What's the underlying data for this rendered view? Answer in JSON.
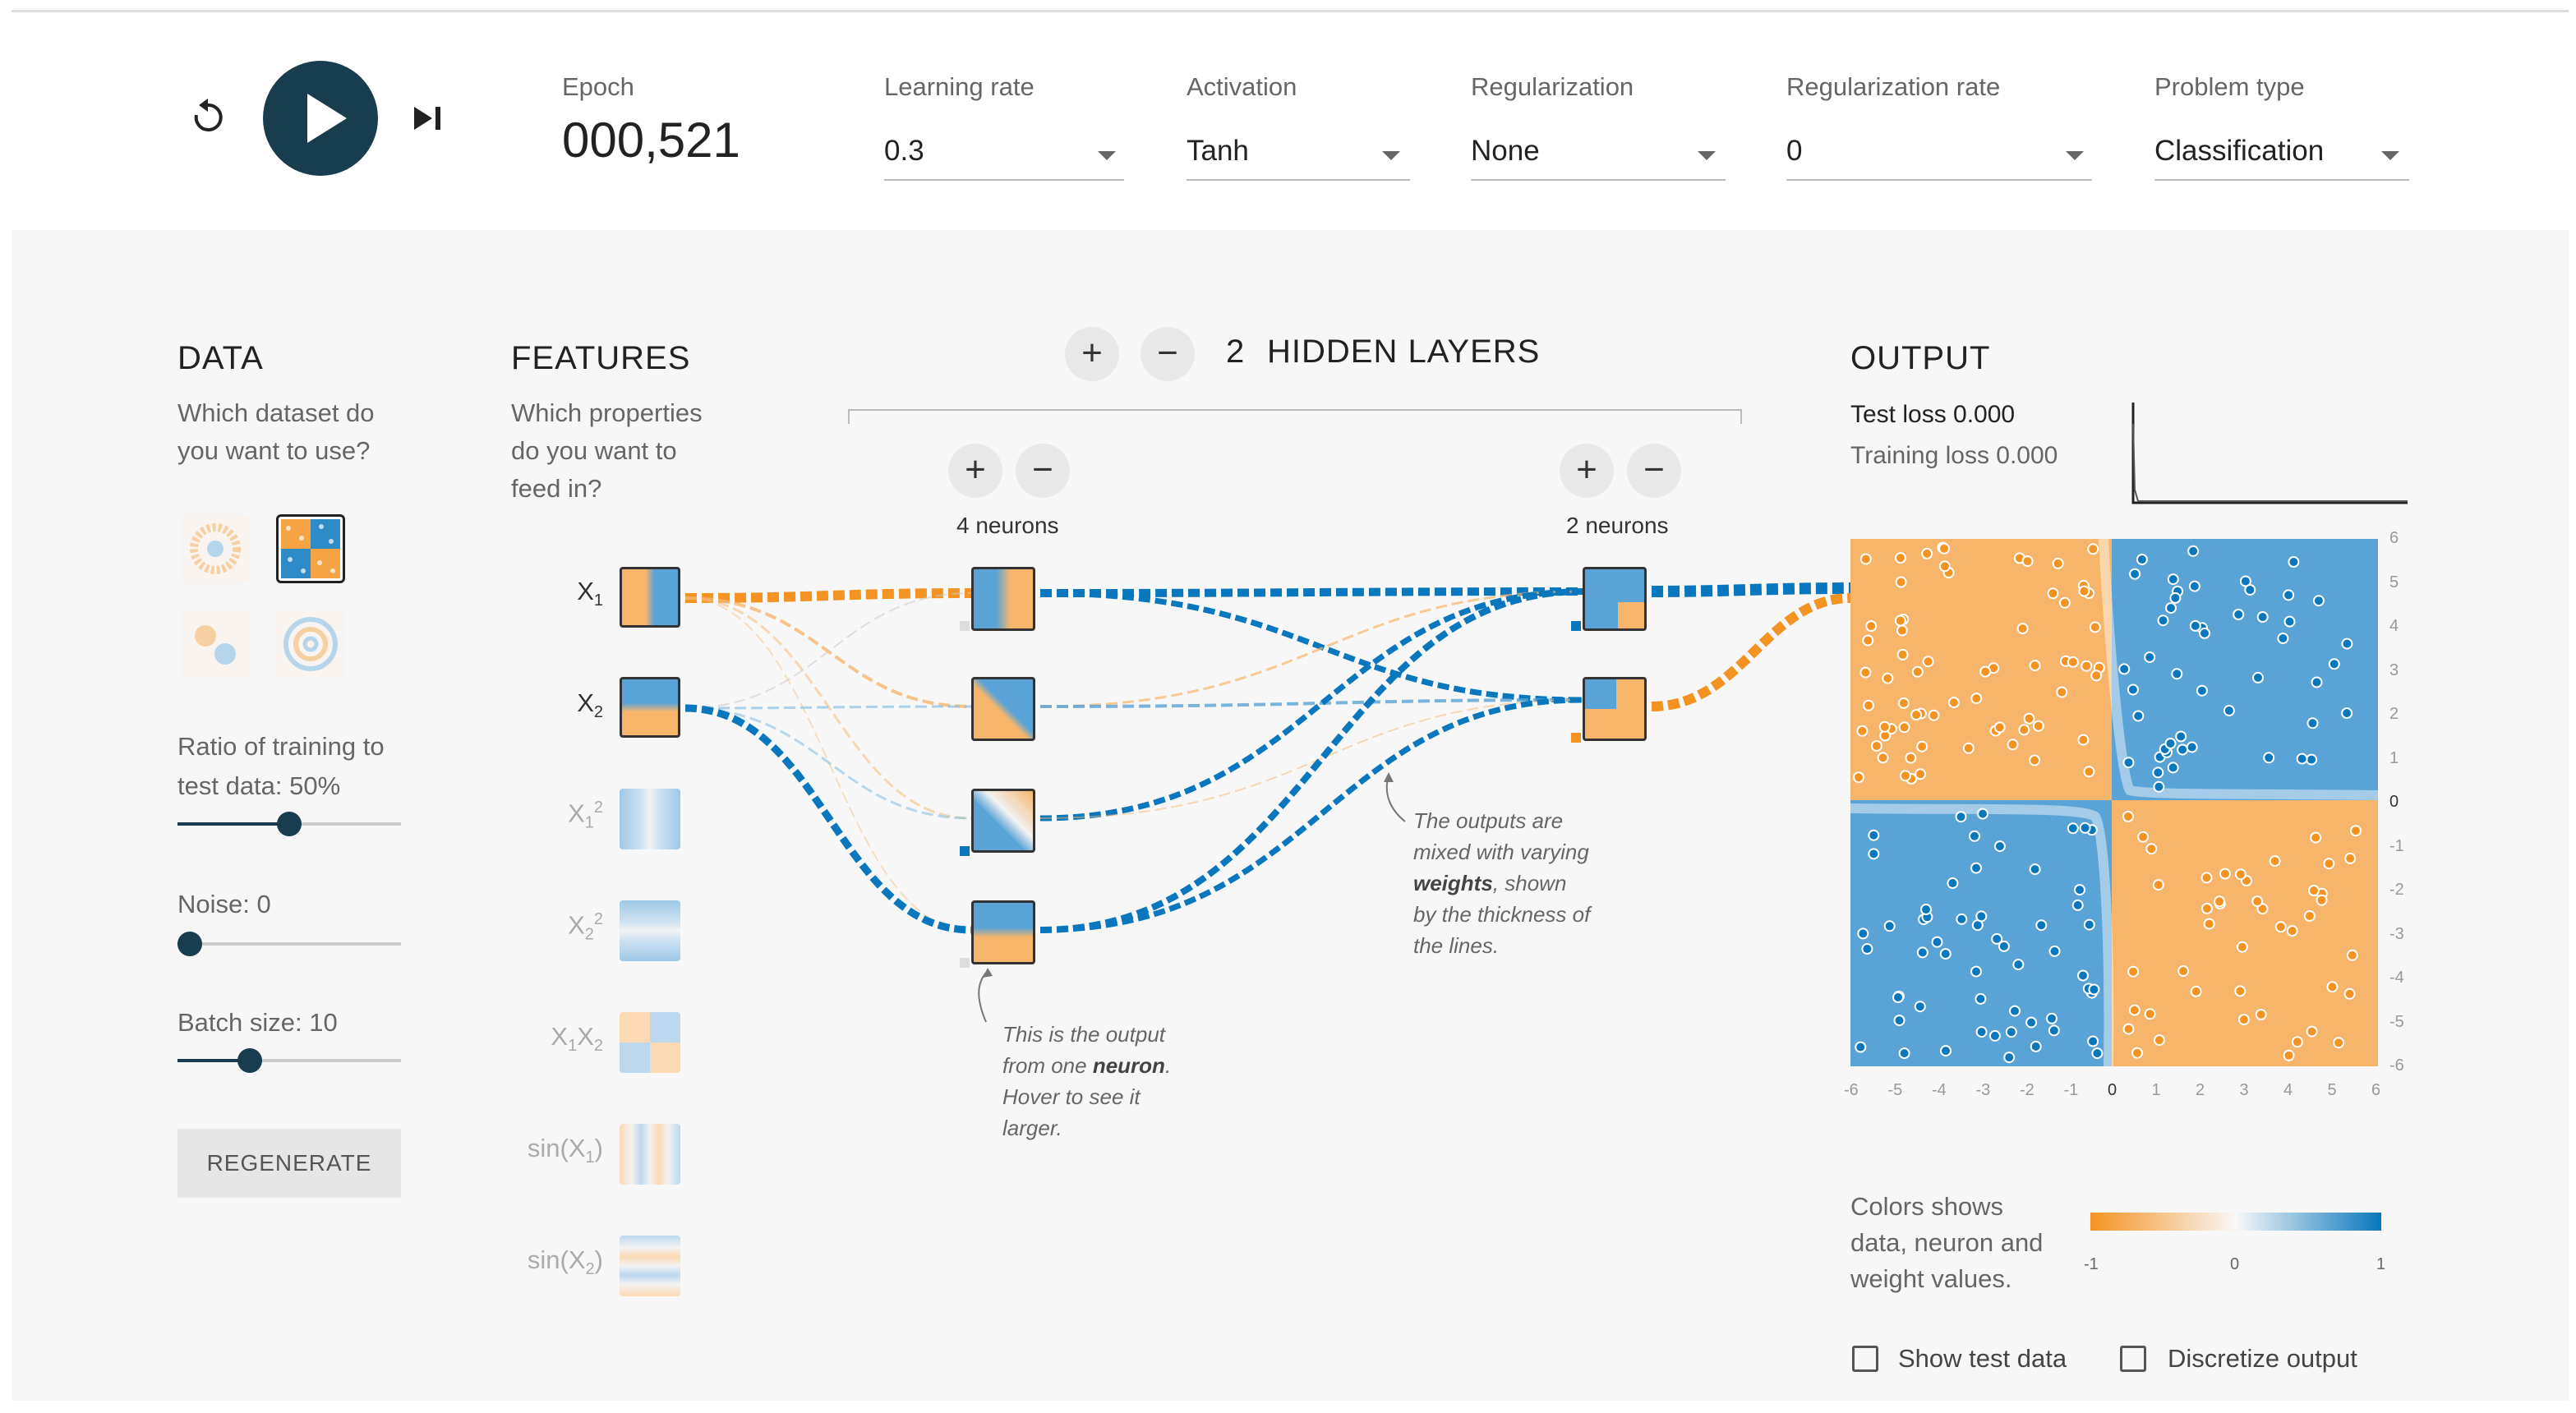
{
  "controls": {
    "epoch_label": "Epoch",
    "epoch_value": "000,521",
    "learning_rate_label": "Learning rate",
    "learning_rate_value": "0.3",
    "activation_label": "Activation",
    "activation_value": "Tanh",
    "regularization_label": "Regularization",
    "regularization_value": "None",
    "regularization_rate_label": "Regularization rate",
    "regularization_rate_value": "0",
    "problem_type_label": "Problem type",
    "problem_type_value": "Classification"
  },
  "data_panel": {
    "title": "DATA",
    "description_line1": "Which dataset do",
    "description_line2": "you want to use?",
    "ratio_label_line1": "Ratio of training to",
    "ratio_label_line2": "test data:  50%",
    "ratio_value": 0.5,
    "noise_label": "Noise:  0",
    "noise_value": 0.0,
    "batch_label": "Batch size:  10",
    "batch_value": 0.3,
    "regenerate_label": "REGENERATE"
  },
  "features_panel": {
    "title": "FEATURES",
    "description_line1": "Which properties",
    "description_line2": "do you want to",
    "description_line3": "feed in?",
    "features": [
      {
        "base": "X",
        "sub": "1",
        "sup": ""
      },
      {
        "base": "X",
        "sub": "2",
        "sup": ""
      },
      {
        "base": "X",
        "sub": "1",
        "sup": "2"
      },
      {
        "base": "X",
        "sub": "2",
        "sup": "2"
      },
      {
        "base": "X",
        "sub": "1",
        "base2": "X",
        "sub2": "2"
      },
      {
        "base": "sin(X",
        "sub": "1",
        "close": ")"
      },
      {
        "base": "sin(X",
        "sub": "2",
        "close": ")"
      }
    ]
  },
  "network": {
    "add_layer_symbol": "+",
    "remove_layer_symbol": "−",
    "hidden_layers_count": "2",
    "hidden_layers_label": "HIDDEN LAYERS",
    "layer1_neurons": "4 neurons",
    "layer2_neurons": "2 neurons",
    "note_neuron_line1": "This is the output",
    "note_neuron_line2_pre": "from one ",
    "note_neuron_line2_bold": "neuron",
    "note_neuron_line2_post": ".",
    "note_neuron_line3": "Hover to see it",
    "note_neuron_line4": "larger.",
    "note_weights_line1": "The outputs are",
    "note_weights_line2": "mixed with varying",
    "note_weights_line3_bold": "weights",
    "note_weights_line3_post": ", shown",
    "note_weights_line4": "by the thickness of",
    "note_weights_line5": "the lines."
  },
  "output_panel": {
    "title": "OUTPUT",
    "test_loss": "Test loss 0.000",
    "training_loss": "Training loss 0.000",
    "x_ticks": [
      "-6",
      "-5",
      "-4",
      "-3",
      "-2",
      "-1",
      "0",
      "1",
      "2",
      "3",
      "4",
      "5",
      "6"
    ],
    "y_ticks": [
      "6",
      "5",
      "4",
      "3",
      "2",
      "1",
      "0",
      "-1",
      "-2",
      "-3",
      "-4",
      "-5",
      "-6"
    ],
    "legend_line1": "Colors shows",
    "legend_line2": "data, neuron and",
    "legend_line3": "weight values.",
    "legend_min": "-1",
    "legend_mid": "0",
    "legend_max": "1",
    "show_test_label": "Show test data",
    "discretize_label": "Discretize output"
  },
  "colors": {
    "orange": "#f59322",
    "blue": "#0877bd",
    "dark": "#183d4e",
    "region_orange": "#f6b56b",
    "region_blue": "#5aa3d6"
  }
}
